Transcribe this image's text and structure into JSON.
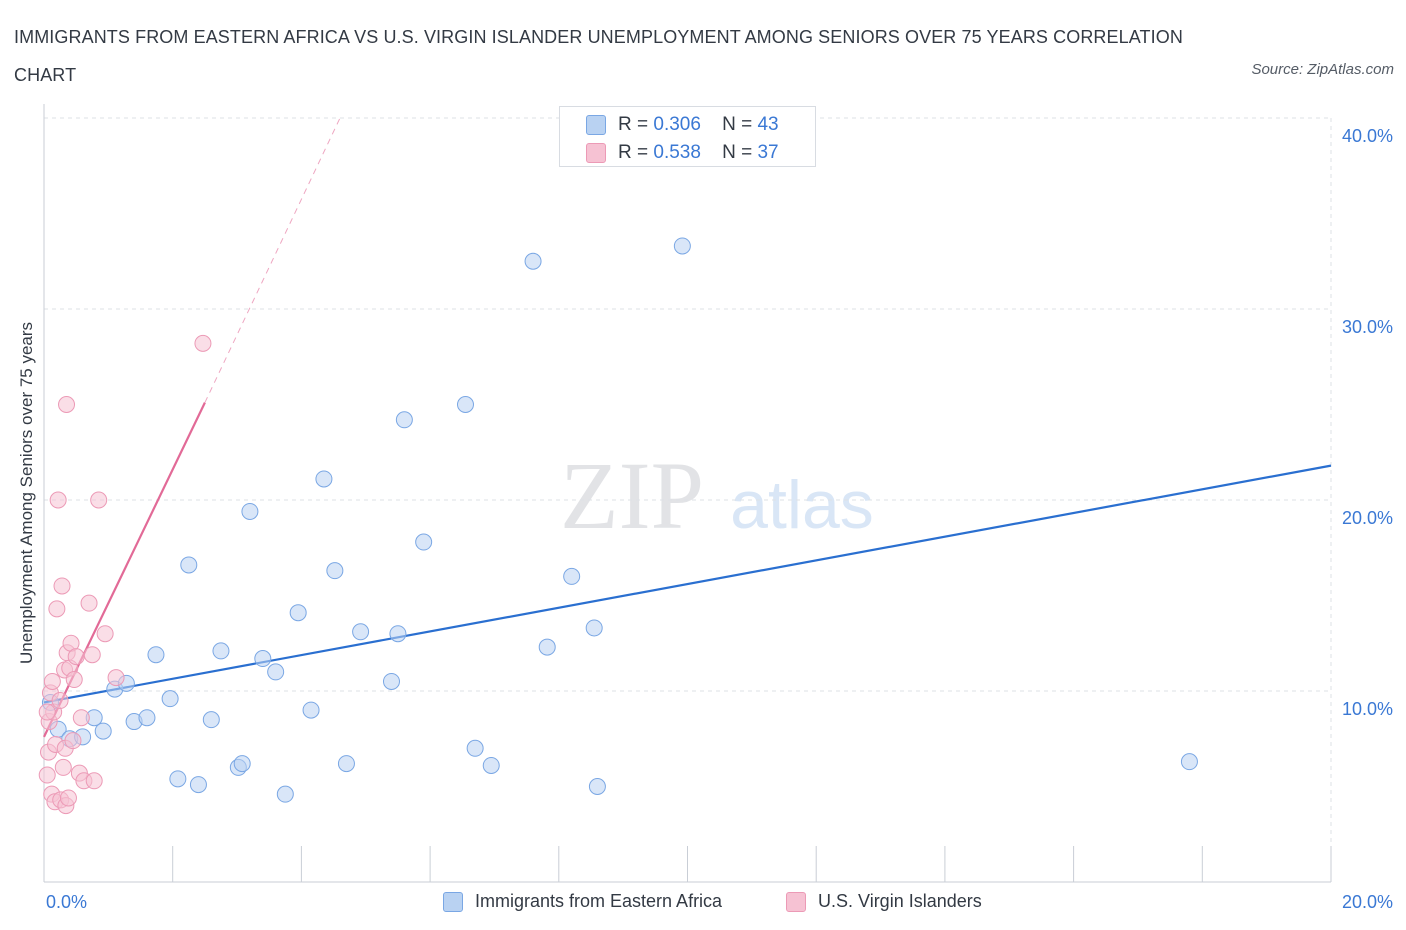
{
  "header": {
    "title": "IMMIGRANTS FROM EASTERN AFRICA VS U.S. VIRGIN ISLANDER UNEMPLOYMENT AMONG SENIORS OVER 75 YEARS CORRELATION CHART",
    "source": "Source: ZipAtlas.com"
  },
  "watermark": {
    "zip": "ZIP",
    "atlas": "atlas"
  },
  "legend": {
    "r_label": "R =",
    "n_label": "N =",
    "series": [
      {
        "name": "Immigrants from Eastern Africa",
        "r": "0.306",
        "n": "43"
      },
      {
        "name": "U.S. Virgin Islanders",
        "r": "0.538",
        "n": "37"
      }
    ]
  },
  "colors": {
    "blue_fill": "#b9d2f2",
    "blue_stroke": "#7aa7e4",
    "blue_line": "#2a6fd0",
    "pink_fill": "#f6c2d3",
    "pink_stroke": "#ec9ab6",
    "pink_line": "#e26a97",
    "grid": "#dde1e6",
    "axis_text": "#3a78d4"
  },
  "chart_data": {
    "type": "scatter",
    "title": "IMMIGRANTS FROM EASTERN AFRICA VS U.S. VIRGIN ISLANDER UNEMPLOYMENT AMONG SENIORS OVER 75 YEARS CORRELATION CHART",
    "xlabel": "",
    "ylabel": "Unemployment Among Seniors over 75 years",
    "xlim": [
      0,
      20
    ],
    "ylim": [
      0,
      40
    ],
    "x_tick_labels": [
      "0.0%",
      "20.0%"
    ],
    "y_ticks": [
      10,
      20,
      30,
      40
    ],
    "y_tick_labels": [
      "10.0%",
      "20.0%",
      "30.0%",
      "40.0%"
    ],
    "grid": true,
    "legend_position": "top-center",
    "series": [
      {
        "name": "Immigrants from Eastern Africa",
        "color": "#7aa7e4",
        "points": [
          {
            "x": 0.22,
            "y": 8.0
          },
          {
            "x": 0.4,
            "y": 7.5
          },
          {
            "x": 0.6,
            "y": 7.6
          },
          {
            "x": 0.78,
            "y": 8.6
          },
          {
            "x": 0.92,
            "y": 7.9
          },
          {
            "x": 1.1,
            "y": 10.1
          },
          {
            "x": 1.28,
            "y": 10.4
          },
          {
            "x": 1.4,
            "y": 8.4
          },
          {
            "x": 1.6,
            "y": 8.6
          },
          {
            "x": 1.74,
            "y": 11.9
          },
          {
            "x": 1.96,
            "y": 9.6
          },
          {
            "x": 2.08,
            "y": 5.4
          },
          {
            "x": 2.25,
            "y": 16.6
          },
          {
            "x": 2.4,
            "y": 5.1
          },
          {
            "x": 2.6,
            "y": 8.5
          },
          {
            "x": 2.75,
            "y": 12.1
          },
          {
            "x": 3.02,
            "y": 6.0
          },
          {
            "x": 3.08,
            "y": 6.2
          },
          {
            "x": 3.2,
            "y": 19.4
          },
          {
            "x": 3.4,
            "y": 11.7
          },
          {
            "x": 3.6,
            "y": 11.0
          },
          {
            "x": 3.75,
            "y": 4.6
          },
          {
            "x": 3.95,
            "y": 14.1
          },
          {
            "x": 4.15,
            "y": 9.0
          },
          {
            "x": 4.35,
            "y": 21.1
          },
          {
            "x": 4.52,
            "y": 16.3
          },
          {
            "x": 4.7,
            "y": 6.2
          },
          {
            "x": 4.92,
            "y": 13.1
          },
          {
            "x": 5.4,
            "y": 10.5
          },
          {
            "x": 5.5,
            "y": 13.0
          },
          {
            "x": 5.6,
            "y": 24.2
          },
          {
            "x": 5.9,
            "y": 17.8
          },
          {
            "x": 6.55,
            "y": 25.0
          },
          {
            "x": 6.7,
            "y": 7.0
          },
          {
            "x": 6.95,
            "y": 6.1
          },
          {
            "x": 7.6,
            "y": 32.5
          },
          {
            "x": 7.82,
            "y": 12.3
          },
          {
            "x": 8.2,
            "y": 16.0
          },
          {
            "x": 8.55,
            "y": 13.3
          },
          {
            "x": 8.6,
            "y": 5.0
          },
          {
            "x": 9.92,
            "y": 33.3
          },
          {
            "x": 17.8,
            "y": 6.3
          },
          {
            "x": 0.1,
            "y": 9.4
          }
        ],
        "trendline": {
          "x": [
            0.0,
            20.0
          ],
          "y": [
            9.4,
            21.8
          ]
        }
      },
      {
        "name": "U.S. Virgin Islanders",
        "color": "#ec9ab6",
        "points": [
          {
            "x": 0.05,
            "y": 5.6
          },
          {
            "x": 0.07,
            "y": 6.8
          },
          {
            "x": 0.08,
            "y": 8.4
          },
          {
            "x": 0.1,
            "y": 9.9
          },
          {
            "x": 0.12,
            "y": 4.6
          },
          {
            "x": 0.13,
            "y": 10.5
          },
          {
            "x": 0.15,
            "y": 8.9
          },
          {
            "x": 0.17,
            "y": 4.2
          },
          {
            "x": 0.18,
            "y": 7.2
          },
          {
            "x": 0.2,
            "y": 14.3
          },
          {
            "x": 0.22,
            "y": 20.0
          },
          {
            "x": 0.25,
            "y": 9.5
          },
          {
            "x": 0.26,
            "y": 4.3
          },
          {
            "x": 0.28,
            "y": 15.5
          },
          {
            "x": 0.3,
            "y": 6.0
          },
          {
            "x": 0.32,
            "y": 11.1
          },
          {
            "x": 0.33,
            "y": 7.0
          },
          {
            "x": 0.34,
            "y": 4.0
          },
          {
            "x": 0.35,
            "y": 25.0
          },
          {
            "x": 0.36,
            "y": 12.0
          },
          {
            "x": 0.38,
            "y": 4.4
          },
          {
            "x": 0.4,
            "y": 11.2
          },
          {
            "x": 0.42,
            "y": 12.5
          },
          {
            "x": 0.45,
            "y": 7.4
          },
          {
            "x": 0.47,
            "y": 10.6
          },
          {
            "x": 0.5,
            "y": 11.8
          },
          {
            "x": 0.55,
            "y": 5.7
          },
          {
            "x": 0.58,
            "y": 8.6
          },
          {
            "x": 0.62,
            "y": 5.3
          },
          {
            "x": 0.7,
            "y": 14.6
          },
          {
            "x": 0.75,
            "y": 11.9
          },
          {
            "x": 0.78,
            "y": 5.3
          },
          {
            "x": 0.85,
            "y": 20.0
          },
          {
            "x": 0.95,
            "y": 13.0
          },
          {
            "x": 1.12,
            "y": 10.7
          },
          {
            "x": 2.47,
            "y": 28.2
          },
          {
            "x": 0.05,
            "y": 8.9
          }
        ],
        "trendline": {
          "x": [
            0.0,
            2.5
          ],
          "y": [
            7.6,
            25.1
          ]
        },
        "trendline_extension": {
          "x": [
            2.5,
            4.6
          ],
          "y": [
            25.1,
            40.0
          ]
        }
      }
    ]
  }
}
